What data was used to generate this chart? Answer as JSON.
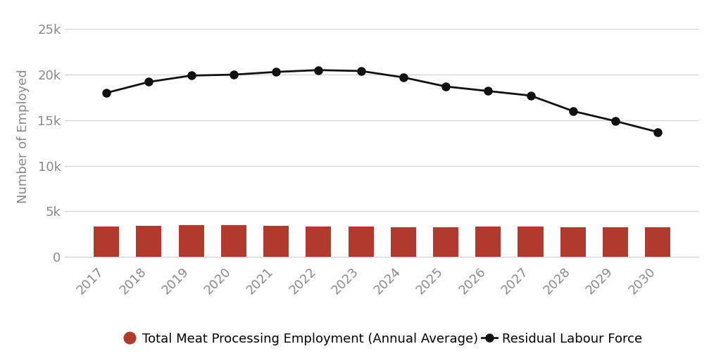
{
  "years": [
    2017,
    2018,
    2019,
    2020,
    2021,
    2022,
    2023,
    2024,
    2025,
    2026,
    2027,
    2028,
    2029,
    2030
  ],
  "bar_values": [
    3300,
    3400,
    3450,
    3450,
    3400,
    3300,
    3300,
    3250,
    3250,
    3300,
    3300,
    3250,
    3250,
    3250
  ],
  "line_values": [
    18000,
    19200,
    19900,
    20000,
    20300,
    20500,
    20400,
    19700,
    18700,
    18200,
    17700,
    16000,
    14900,
    13700
  ],
  "bar_color": "#b03a2e",
  "line_color": "#111111",
  "marker_color": "#111111",
  "background_color": "#ffffff",
  "ylabel": "Number of Employed",
  "yticks": [
    0,
    5000,
    10000,
    15000,
    20000,
    25000
  ],
  "ytick_labels": [
    "0",
    "5k",
    "10k",
    "15k",
    "20k",
    "25k"
  ],
  "ylim": [
    -500,
    27000
  ],
  "legend_bar_label": "Total Meat Processing Employment (Annual Average)",
  "legend_line_label": "Residual Labour Force",
  "grid_color": "#d0d0d0",
  "bar_width": 0.6,
  "line_width": 2.0,
  "marker_size": 8,
  "tick_fontsize": 13,
  "label_fontsize": 13,
  "legend_fontsize": 13
}
